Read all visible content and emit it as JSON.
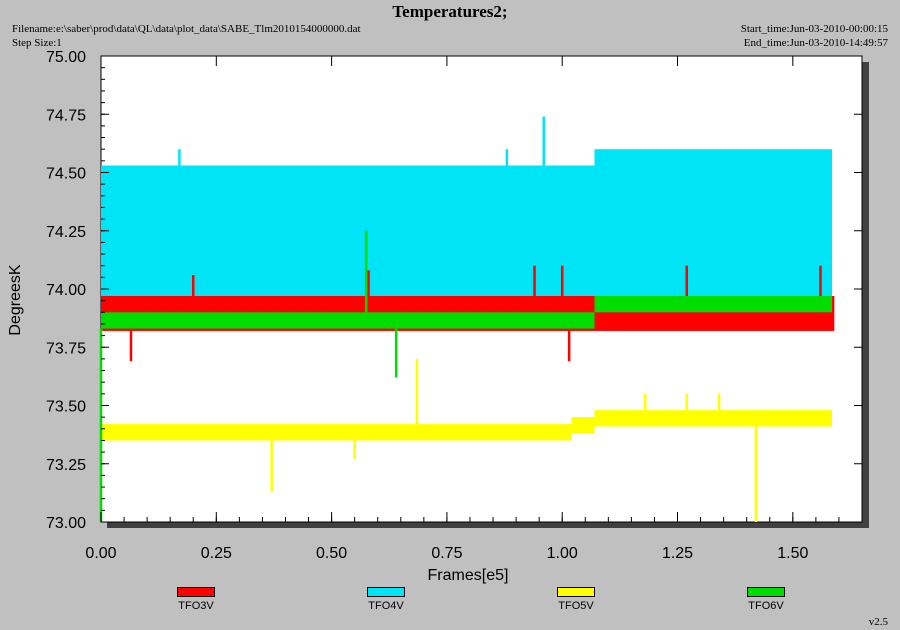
{
  "header": {
    "title": "Temperatures2;",
    "filename": "Filename:e:\\saber\\prod\\data\\QL\\data\\plot_data\\SABE_Tlm2010154000000.dat",
    "step_size": "Step Size:1",
    "start_time": "Start_time:Jun-03-2010-00:00:15",
    "end_time": "End_time:Jun-03-2010-14:49:57"
  },
  "footer": {
    "version": "v2.5"
  },
  "colors": {
    "background": "#c0c0c0",
    "plot_bg": "#ffffff",
    "shadow": "#404040"
  },
  "chart_data": {
    "type": "line",
    "title": "Temperatures2;",
    "xlabel": "Frames[e5]",
    "ylabel": "DegreesK",
    "xlim": [
      0.0,
      1.65
    ],
    "ylim": [
      73.0,
      75.0
    ],
    "x_ticks": [
      "0.00",
      "0.25",
      "0.50",
      "0.75",
      "1.00",
      "1.25",
      "1.50"
    ],
    "x_tick_values": [
      0.0,
      0.25,
      0.5,
      0.75,
      1.0,
      1.25,
      1.5
    ],
    "y_ticks": [
      "73.00",
      "73.25",
      "73.50",
      "73.75",
      "74.00",
      "74.25",
      "74.50",
      "74.75",
      "75.00"
    ],
    "y_tick_values": [
      73.0,
      73.25,
      73.5,
      73.75,
      74.0,
      74.25,
      74.5,
      74.75,
      75.0
    ],
    "legend_position": "bottom",
    "grid": false,
    "series": [
      {
        "name": "TFO3V",
        "color": "#ff0000",
        "bands": [
          {
            "x0": 0.0,
            "x1": 1.59,
            "low": 73.82,
            "high": 73.97
          }
        ],
        "spikes": [
          {
            "x": 0.065,
            "low": 73.69,
            "high": 73.82
          },
          {
            "x": 0.2,
            "low": 73.97,
            "high": 74.06
          },
          {
            "x": 0.58,
            "low": 73.97,
            "high": 74.08
          },
          {
            "x": 0.94,
            "low": 73.97,
            "high": 74.1
          },
          {
            "x": 1.0,
            "low": 73.97,
            "high": 74.1
          },
          {
            "x": 1.015,
            "low": 73.69,
            "high": 73.82
          },
          {
            "x": 1.27,
            "low": 73.97,
            "high": 74.1
          },
          {
            "x": 1.56,
            "low": 73.97,
            "high": 74.1
          }
        ]
      },
      {
        "name": "TFO4V",
        "color": "#00e5f5",
        "bands": [
          {
            "x0": 0.0,
            "x1": 1.07,
            "low": 73.93,
            "high": 74.53
          },
          {
            "x0": 1.07,
            "x1": 1.585,
            "low": 73.93,
            "high": 74.6
          }
        ],
        "spikes": [
          {
            "x": 0.17,
            "low": 74.53,
            "high": 74.6
          },
          {
            "x": 0.96,
            "low": 74.53,
            "high": 74.74
          },
          {
            "x": 0.88,
            "low": 74.53,
            "high": 74.6
          }
        ]
      },
      {
        "name": "TFO5V",
        "color": "#ffff00",
        "bands": [
          {
            "x0": 0.0,
            "x1": 1.02,
            "low": 73.35,
            "high": 73.42
          },
          {
            "x0": 1.02,
            "x1": 1.07,
            "low": 73.38,
            "high": 73.45
          },
          {
            "x0": 1.07,
            "x1": 1.585,
            "low": 73.41,
            "high": 73.48
          }
        ],
        "spikes": [
          {
            "x": 0.37,
            "low": 73.13,
            "high": 73.35
          },
          {
            "x": 0.55,
            "low": 73.27,
            "high": 73.35
          },
          {
            "x": 0.685,
            "low": 73.42,
            "high": 73.7
          },
          {
            "x": 1.42,
            "low": 73.0,
            "high": 73.41
          },
          {
            "x": 1.18,
            "low": 73.48,
            "high": 73.55
          },
          {
            "x": 1.27,
            "low": 73.48,
            "high": 73.55
          },
          {
            "x": 1.34,
            "low": 73.48,
            "high": 73.55
          }
        ]
      },
      {
        "name": "TFO6V",
        "color": "#00dd00",
        "bands": [
          {
            "x0": 0.0,
            "x1": 1.07,
            "low": 73.83,
            "high": 73.9
          },
          {
            "x0": 1.07,
            "x1": 1.585,
            "low": 73.9,
            "high": 73.97
          }
        ],
        "spikes": [
          {
            "x": 0.575,
            "low": 73.9,
            "high": 74.25
          },
          {
            "x": 0.64,
            "low": 73.62,
            "high": 73.83
          },
          {
            "x": 0.0,
            "low": 73.0,
            "high": 73.83
          }
        ]
      }
    ]
  }
}
